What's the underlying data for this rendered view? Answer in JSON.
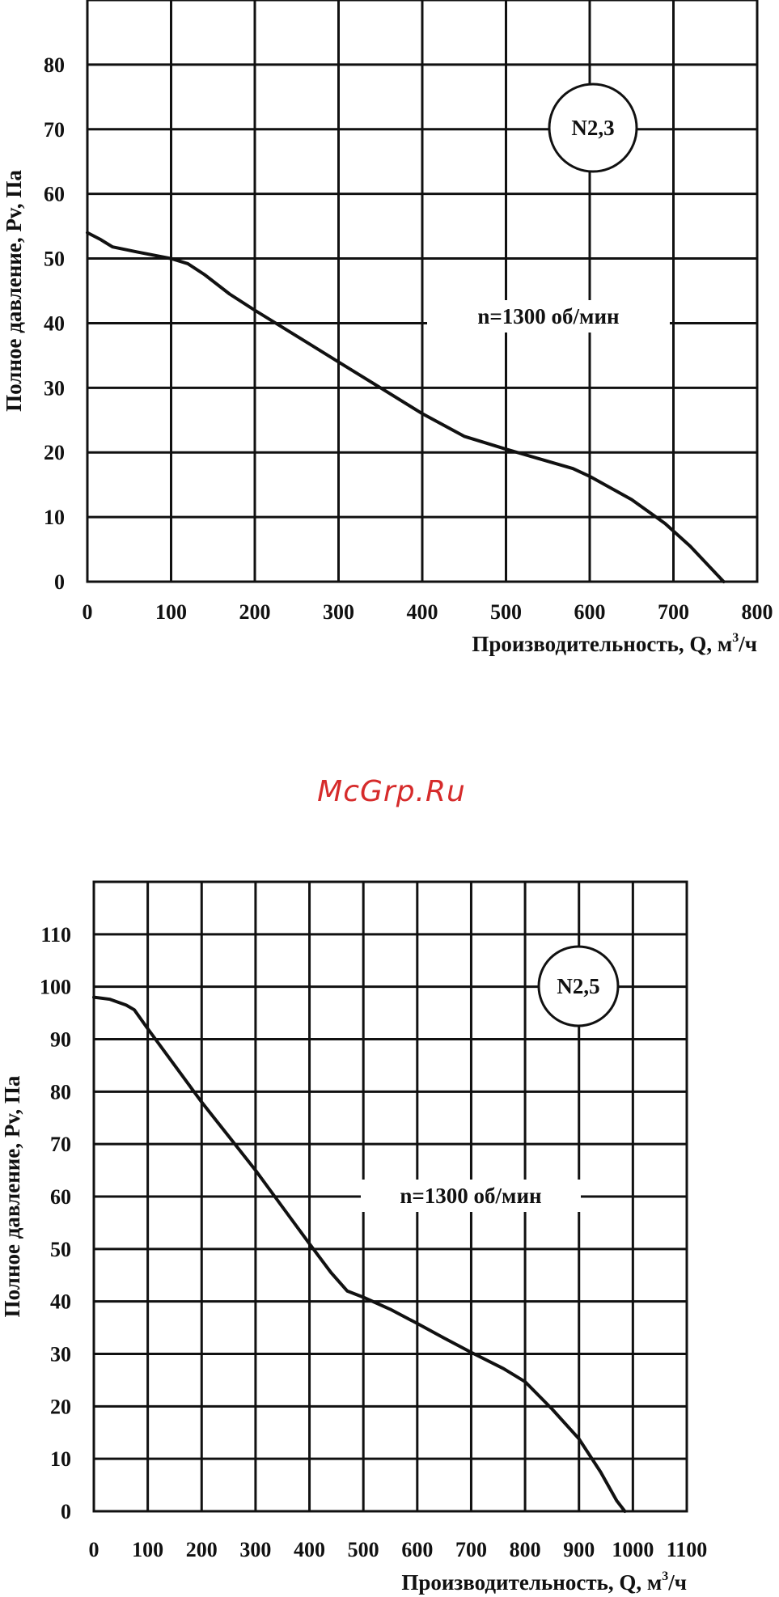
{
  "watermark": "McGrp.Ru",
  "chart_data": [
    {
      "type": "line",
      "badge": "N2,3",
      "annotation": "n=1300 об/мин",
      "xlabel_main": "Производительность, Q, м",
      "xlabel_sup": "3",
      "xlabel_tail": "/ч",
      "ylabel": "Полное давление, Pv, Па",
      "xlim": [
        0,
        800
      ],
      "ylim": [
        0,
        90
      ],
      "xticks": [
        0,
        100,
        200,
        300,
        400,
        500,
        600,
        700,
        800
      ],
      "yticks": [
        0,
        10,
        20,
        30,
        40,
        50,
        60,
        70,
        80
      ],
      "grid": true,
      "series": [
        {
          "x": [
            0,
            15,
            30,
            60,
            100,
            120,
            140,
            170,
            200,
            250,
            300,
            350,
            400,
            450,
            500,
            540,
            580,
            600,
            650,
            690,
            720,
            760
          ],
          "values": [
            54,
            53,
            51.8,
            51,
            50,
            49.2,
            47.5,
            44.5,
            42,
            38,
            34,
            30,
            26,
            22.5,
            20.5,
            19,
            17.5,
            16.3,
            12.7,
            9,
            5.5,
            0
          ]
        }
      ]
    },
    {
      "type": "line",
      "badge": "N2,5",
      "annotation": "n=1300 об/мин",
      "xlabel_main": "Производительность, Q, м",
      "xlabel_sup": "3",
      "xlabel_tail": "/ч",
      "ylabel": "Полное давление, Pv, Па",
      "xlim": [
        0,
        1100
      ],
      "ylim": [
        0,
        120
      ],
      "xticks": [
        0,
        100,
        200,
        300,
        400,
        500,
        600,
        700,
        800,
        900,
        1000,
        1100
      ],
      "yticks": [
        0,
        10,
        20,
        30,
        40,
        50,
        60,
        70,
        80,
        90,
        100,
        110
      ],
      "grid": true,
      "series": [
        {
          "x": [
            0,
            30,
            60,
            75,
            100,
            150,
            200,
            250,
            300,
            350,
            400,
            440,
            470,
            500,
            550,
            600,
            650,
            700,
            760,
            800,
            850,
            900,
            940,
            970,
            985
          ],
          "values": [
            98,
            97.6,
            96.5,
            95.6,
            92,
            85,
            78,
            71.5,
            65,
            58,
            51,
            45.5,
            42,
            40.8,
            38.5,
            35.8,
            33,
            30.3,
            27.2,
            24.7,
            19.5,
            13.8,
            7.5,
            2,
            0
          ]
        }
      ]
    }
  ]
}
